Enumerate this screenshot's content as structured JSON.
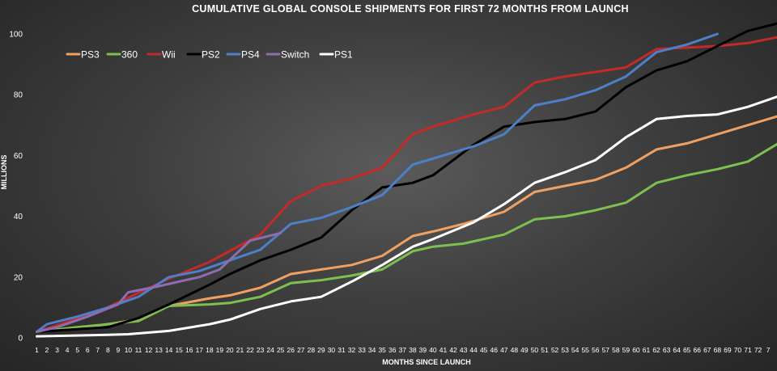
{
  "chart_data": {
    "type": "line",
    "title": "CUMULATIVE GLOBAL CONSOLE SHIPMENTS FOR FIRST 72 MONTHS FROM LAUNCH",
    "xlabel": "MONTHS SINCE LAUNCH",
    "ylabel": "MILLIONS",
    "ylim": [
      0,
      100
    ],
    "yticks": [
      0,
      20,
      40,
      60,
      80,
      100
    ],
    "grid": false,
    "legend_position": "top-left",
    "x_tick_labels": [
      "1",
      "2",
      "3",
      "4",
      "5",
      "6",
      "7",
      "8",
      "9",
      "10",
      "11",
      "12",
      "13",
      "14",
      "15",
      "16",
      "17",
      "18",
      "19",
      "20",
      "21",
      "22",
      "23",
      "24",
      "25",
      "26",
      "27",
      "28",
      "29",
      "30",
      "31",
      "32",
      "33",
      "34",
      "35",
      "36",
      "37",
      "38",
      "39",
      "40",
      "41",
      "42",
      "43",
      "44",
      "45",
      "46",
      "47",
      "48",
      "49",
      "50",
      "51",
      "52",
      "53",
      "54",
      "55",
      "56",
      "57",
      "58",
      "59",
      "60",
      "61",
      "62",
      "63",
      "64",
      "65",
      "66",
      "67",
      "68",
      "69",
      "70",
      "71",
      "72",
      "7"
    ],
    "series": [
      {
        "name": "PS3",
        "color": "#f0a060",
        "points": [
          [
            1,
            2
          ],
          [
            5,
            3
          ],
          [
            11,
            6
          ],
          [
            14,
            10.5
          ],
          [
            18,
            13
          ],
          [
            20,
            14
          ],
          [
            23,
            16.5
          ],
          [
            26,
            21
          ],
          [
            29,
            22.5
          ],
          [
            32,
            24
          ],
          [
            35,
            27
          ],
          [
            38,
            33.5
          ],
          [
            40,
            35
          ],
          [
            43,
            37.5
          ],
          [
            47,
            41.5
          ],
          [
            50,
            48
          ],
          [
            53,
            50
          ],
          [
            56,
            52
          ],
          [
            59,
            56
          ],
          [
            62,
            62
          ],
          [
            65,
            64
          ],
          [
            68,
            67
          ],
          [
            71,
            70
          ],
          [
            74,
            73
          ]
        ]
      },
      {
        "name": "360",
        "color": "#7ec050",
        "points": [
          [
            1,
            2
          ],
          [
            5,
            3.5
          ],
          [
            11,
            5.5
          ],
          [
            14,
            10.5
          ],
          [
            18,
            11
          ],
          [
            20,
            11.5
          ],
          [
            23,
            13.5
          ],
          [
            26,
            18
          ],
          [
            29,
            19
          ],
          [
            32,
            20.5
          ],
          [
            35,
            22.5
          ],
          [
            38,
            28.5
          ],
          [
            40,
            30
          ],
          [
            43,
            31
          ],
          [
            47,
            34
          ],
          [
            50,
            39
          ],
          [
            53,
            40
          ],
          [
            56,
            42
          ],
          [
            59,
            44.5
          ],
          [
            62,
            51
          ],
          [
            65,
            53.5
          ],
          [
            68,
            55.5
          ],
          [
            71,
            58
          ],
          [
            74,
            64
          ]
        ]
      },
      {
        "name": "Wii",
        "color": "#c42a28",
        "points": [
          [
            1,
            2
          ],
          [
            7,
            8.5
          ],
          [
            14,
            19.5
          ],
          [
            18,
            25
          ],
          [
            23,
            34
          ],
          [
            26,
            45
          ],
          [
            29,
            50
          ],
          [
            32,
            52.5
          ],
          [
            35,
            56
          ],
          [
            38,
            67
          ],
          [
            40,
            69.5
          ],
          [
            44,
            73.5
          ],
          [
            47,
            76
          ],
          [
            50,
            84
          ],
          [
            53,
            86
          ],
          [
            56,
            87.5
          ],
          [
            59,
            89
          ],
          [
            62,
            95
          ],
          [
            65,
            95.5
          ],
          [
            68,
            96
          ],
          [
            71,
            97
          ],
          [
            74,
            99
          ]
        ]
      },
      {
        "name": "PS2",
        "color": "#000000",
        "points": [
          [
            1,
            2
          ],
          [
            8,
            3.5
          ],
          [
            11,
            6.5
          ],
          [
            14,
            11
          ],
          [
            18,
            17.5
          ],
          [
            20,
            21
          ],
          [
            23,
            25.5
          ],
          [
            26,
            29
          ],
          [
            29,
            33
          ],
          [
            32,
            42
          ],
          [
            35,
            49.5
          ],
          [
            38,
            51
          ],
          [
            40,
            53.5
          ],
          [
            44,
            63.5
          ],
          [
            47,
            69.5
          ],
          [
            50,
            71
          ],
          [
            53,
            72
          ],
          [
            56,
            74.5
          ],
          [
            59,
            82.5
          ],
          [
            62,
            88
          ],
          [
            65,
            91
          ],
          [
            68,
            96
          ],
          [
            71,
            101
          ],
          [
            74,
            103.5
          ]
        ]
      },
      {
        "name": "PS4",
        "color": "#4d80c8",
        "points": [
          [
            1,
            2
          ],
          [
            2,
            4.5
          ],
          [
            5,
            7
          ],
          [
            8,
            10
          ],
          [
            11,
            13.5
          ],
          [
            14,
            20
          ],
          [
            17,
            22
          ],
          [
            20,
            25.5
          ],
          [
            23,
            29
          ],
          [
            26,
            37.5
          ],
          [
            29,
            39.5
          ],
          [
            32,
            43
          ],
          [
            35,
            47
          ],
          [
            38,
            57
          ],
          [
            40,
            59
          ],
          [
            44,
            63
          ],
          [
            47,
            67
          ],
          [
            50,
            76.5
          ],
          [
            53,
            78.5
          ],
          [
            56,
            81.5
          ],
          [
            59,
            86
          ],
          [
            62,
            94
          ],
          [
            65,
            96.5
          ],
          [
            68,
            100
          ]
        ]
      },
      {
        "name": "Switch",
        "color": "#8e6cb0",
        "points": [
          [
            1,
            2
          ],
          [
            3,
            3.5
          ],
          [
            6,
            7
          ],
          [
            9,
            11
          ],
          [
            10,
            15
          ],
          [
            13,
            17
          ],
          [
            15,
            18.5
          ],
          [
            17,
            20
          ],
          [
            19,
            22.5
          ],
          [
            22,
            32
          ],
          [
            25,
            34.5
          ]
        ]
      },
      {
        "name": "PS1",
        "color": "#ffffff",
        "points": [
          [
            1,
            0.5
          ],
          [
            8,
            1
          ],
          [
            10,
            1.2
          ],
          [
            14,
            2.3
          ],
          [
            18,
            4.5
          ],
          [
            20,
            6
          ],
          [
            23,
            9.5
          ],
          [
            26,
            12
          ],
          [
            29,
            13.5
          ],
          [
            32,
            18.5
          ],
          [
            35,
            24
          ],
          [
            38,
            30
          ],
          [
            40,
            32.5
          ],
          [
            44,
            38
          ],
          [
            47,
            44
          ],
          [
            50,
            51
          ],
          [
            53,
            54.5
          ],
          [
            56,
            58.5
          ],
          [
            59,
            66
          ],
          [
            62,
            72
          ],
          [
            65,
            73
          ],
          [
            68,
            73.5
          ],
          [
            71,
            76
          ],
          [
            74,
            79.5
          ]
        ]
      }
    ]
  }
}
